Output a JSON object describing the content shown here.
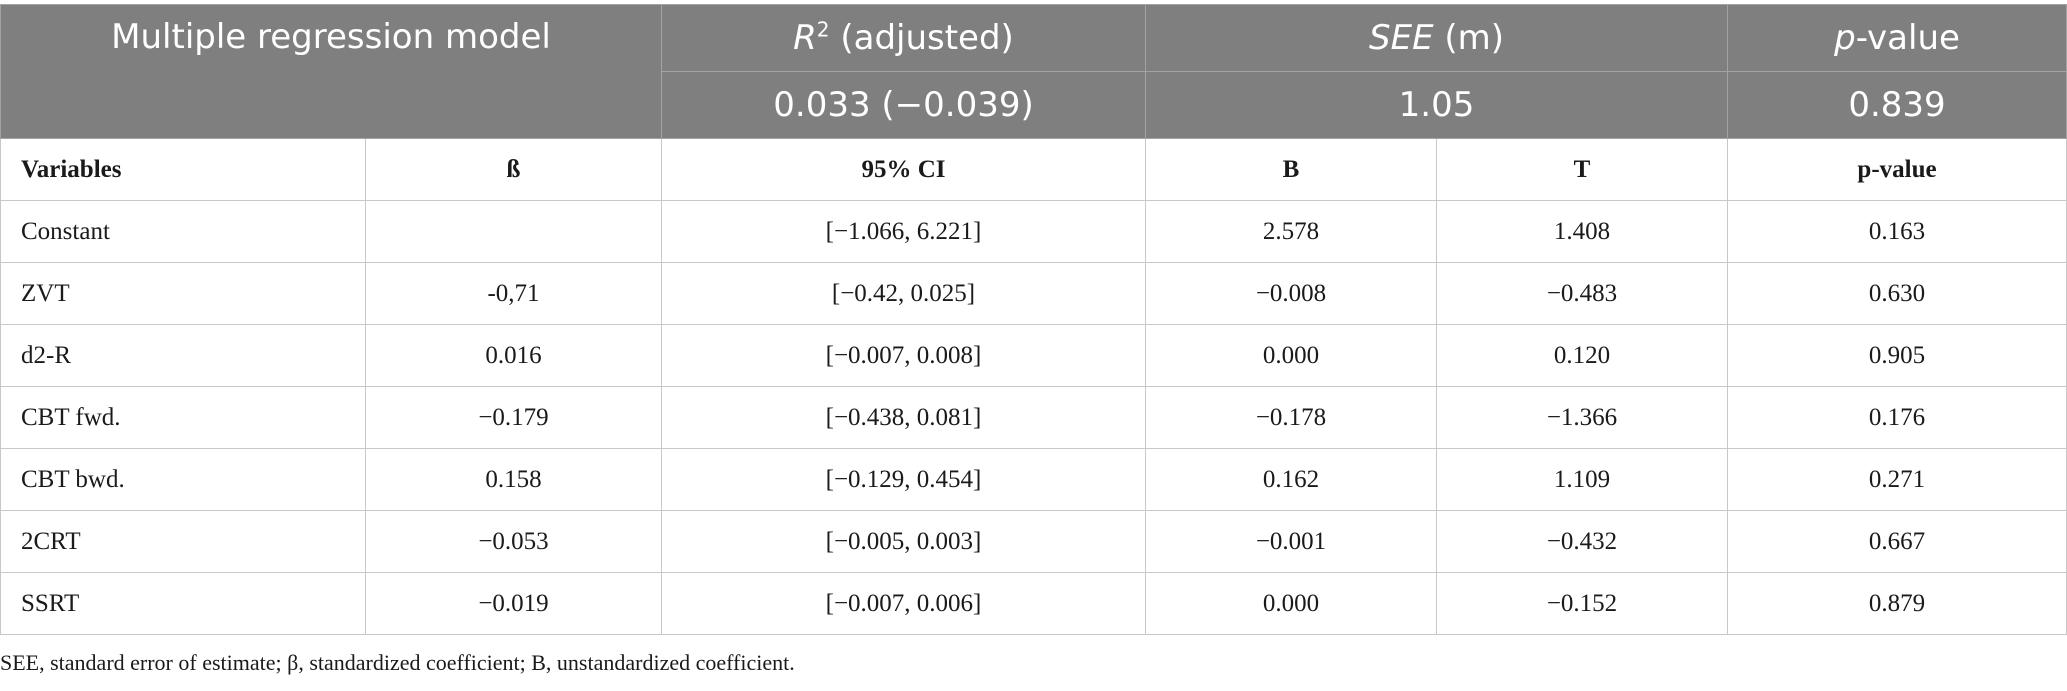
{
  "header": {
    "model_title": "Multiple regression model",
    "r2": {
      "symbol": "R",
      "sup": "2",
      "suffix": " (adjusted)",
      "value": "0.033 (−0.039)"
    },
    "see": {
      "symbol": "SEE",
      "suffix": " (m)",
      "value": "1.05"
    },
    "p": {
      "symbol": "p",
      "suffix": "-value",
      "value": "0.839"
    }
  },
  "columns": [
    "Variables",
    "ß",
    "95% CI",
    "B",
    "T",
    "p-value"
  ],
  "rows": [
    [
      "Constant",
      "",
      "[−1.066, 6.221]",
      "2.578",
      "1.408",
      "0.163"
    ],
    [
      "ZVT",
      "-0,71",
      "[−0.42, 0.025]",
      "−0.008",
      "−0.483",
      "0.630"
    ],
    [
      "d2-R",
      "0.016",
      "[−0.007, 0.008]",
      "0.000",
      "0.120",
      "0.905"
    ],
    [
      "CBT fwd.",
      "−0.179",
      "[−0.438, 0.081]",
      "−0.178",
      "−1.366",
      "0.176"
    ],
    [
      "CBT bwd.",
      "0.158",
      "[−0.129, 0.454]",
      "0.162",
      "1.109",
      "0.271"
    ],
    [
      "2CRT",
      "−0.053",
      "[−0.005, 0.003]",
      "−0.001",
      "−0.432",
      "0.667"
    ],
    [
      "SSRT",
      "−0.019",
      "[−0.007, 0.006]",
      "0.000",
      "−0.152",
      "0.879"
    ]
  ],
  "footnote": "SEE, standard error of estimate; β, standardized coefficient; B, unstandardized coefficient."
}
